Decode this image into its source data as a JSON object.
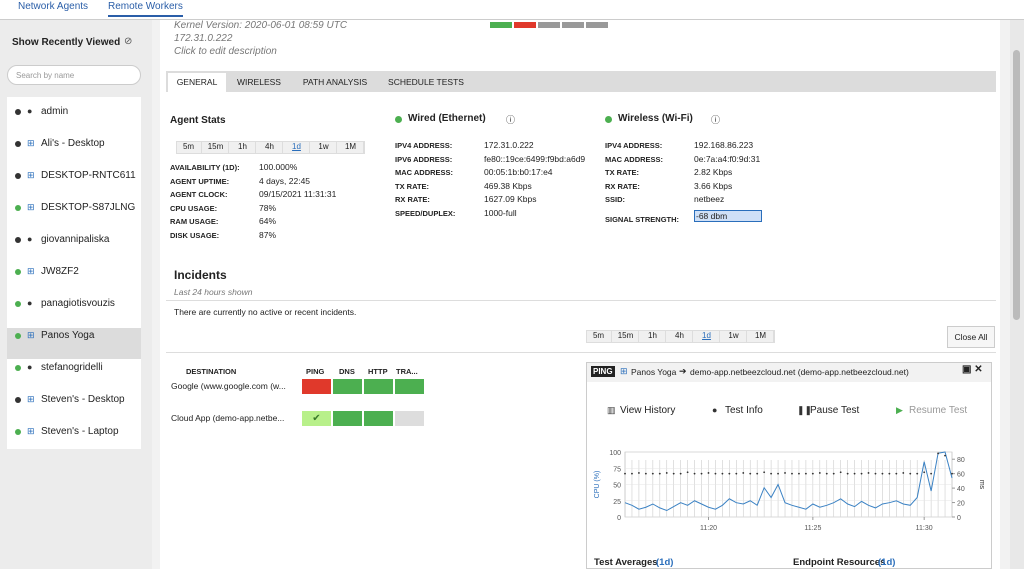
{
  "top_tabs": [
    "Network Agents",
    "Remote Workers"
  ],
  "sidebar": {
    "title": "Show Recently Viewed",
    "search_placeholder": "Search by name",
    "agents": [
      {
        "name": "admin",
        "os": "apple",
        "color": "#333333"
      },
      {
        "name": "Ali's - Desktop",
        "os": "windows",
        "color": "#333333"
      },
      {
        "name": "DESKTOP-RNTC611",
        "os": "windows",
        "color": "#333333"
      },
      {
        "name": "DESKTOP-S87JLNG",
        "os": "windows",
        "color": "#4caf50"
      },
      {
        "name": "giovannipaliska",
        "os": "apple",
        "color": "#333333"
      },
      {
        "name": "JW8ZF2",
        "os": "windows",
        "color": "#4caf50"
      },
      {
        "name": "panagiotisvouzis",
        "os": "apple",
        "color": "#4caf50"
      },
      {
        "name": "Panos Yoga",
        "os": "windows",
        "color": "#4caf50"
      },
      {
        "name": "stefanogridelli",
        "os": "apple",
        "color": "#4caf50"
      },
      {
        "name": "Steven's - Desktop",
        "os": "windows",
        "color": "#333333"
      },
      {
        "name": "Steven's - Laptop",
        "os": "windows",
        "color": "#4caf50"
      }
    ],
    "selected": 7
  },
  "header": {
    "kernel": "Kernel Version: 2020-06-01 08:59 UTC",
    "ip": "172.31.0.222",
    "description": "Click to edit description"
  },
  "tabs": [
    "GENERAL",
    "WIRELESS",
    "PATH ANALYSIS",
    "SCHEDULE TESTS"
  ],
  "ranges": [
    "5m",
    "15m",
    "1h",
    "4h",
    "1d",
    "1w",
    "1M"
  ],
  "selected_range": 4,
  "agent_stats": {
    "title": "Agent Stats",
    "rows": [
      [
        "AVAILABILITY (1D):",
        "100.000%"
      ],
      [
        "AGENT UPTIME:",
        "4 days, 22:45"
      ],
      [
        "AGENT CLOCK:",
        "09/15/2021 11:31:31"
      ],
      [
        "CPU USAGE:",
        "78%"
      ],
      [
        "RAM USAGE:",
        "64%"
      ],
      [
        "DISK USAGE:",
        "87%"
      ]
    ]
  },
  "wired": {
    "title": "Wired (Ethernet)",
    "rows": [
      [
        "IPV4 ADDRESS:",
        "172.31.0.222"
      ],
      [
        "IPV6 ADDRESS:",
        "fe80::19ce:6499:f9bd:a6d9"
      ],
      [
        "MAC ADDRESS:",
        "00:05:1b:b0:17:e4"
      ],
      [
        "TX RATE:",
        "469.38 Kbps"
      ],
      [
        "RX RATE:",
        "1627.09 Kbps"
      ],
      [
        "SPEED/DUPLEX:",
        "1000-full"
      ]
    ]
  },
  "wireless": {
    "title": "Wireless (Wi-Fi)",
    "rows": [
      [
        "IPV4 ADDRESS:",
        "192.168.86.223"
      ],
      [
        "MAC ADDRESS:",
        "0e:7a:a4:f0:9d:31"
      ],
      [
        "TX RATE:",
        "2.82 Kbps"
      ],
      [
        "RX RATE:",
        "3.66 Kbps"
      ],
      [
        "SSID:",
        "netbeez"
      ],
      [
        "SIGNAL STRENGTH:",
        "-68 dbm"
      ]
    ]
  },
  "incidents": {
    "title": "Incidents",
    "subtitle": "Last 24 hours shown",
    "message": "There are currently no active or recent incidents."
  },
  "close_all": "Close All",
  "tests": {
    "headers": [
      "DESTINATION",
      "PING",
      "DNS",
      "HTTP",
      "TRA..."
    ],
    "rows": [
      {
        "destination": "Google (www.google.com (w...",
        "cells": [
          "#e0392b",
          "#4caf50",
          "#4caf50",
          "#4caf50"
        ]
      },
      {
        "destination": "Cloud App (demo-app.netbe...",
        "cells": [
          "#b8f08a",
          "#4caf50",
          "#4caf50",
          "#dddddd"
        ]
      }
    ]
  },
  "panel": {
    "badge": "PING",
    "agent": "Panos Yoga",
    "target": "demo-app.netbeezcloud.net (demo-app.netbeezcloud.net)",
    "actions": [
      "View History",
      "Test Info",
      "Pause Test",
      "Resume Test"
    ],
    "chart": {
      "type": "line",
      "ylabel": "CPU (%)",
      "y2label": "ms",
      "xlim": [
        0,
        47
      ],
      "xticks": [
        {
          "value": 12,
          "label": "11:20"
        },
        {
          "value": 27,
          "label": "11:25"
        },
        {
          "value": 43,
          "label": "11:30"
        }
      ],
      "ylim": [
        0,
        100
      ],
      "yticks": [
        0,
        25,
        50,
        75,
        100
      ],
      "y2lim": [
        0,
        90
      ],
      "y2ticks": [
        0,
        20,
        40,
        60,
        80
      ],
      "series": [
        {
          "name": "CPU",
          "color": "#3b82c4",
          "values": [
            22,
            18,
            12,
            15,
            20,
            14,
            10,
            16,
            22,
            18,
            25,
            20,
            15,
            12,
            18,
            28,
            22,
            20,
            25,
            18,
            45,
            30,
            50,
            22,
            18,
            15,
            12,
            20,
            15,
            18,
            22,
            28,
            20,
            16,
            24,
            18,
            14,
            20,
            22,
            25,
            20,
            18,
            30,
            85,
            40,
            98,
            100,
            60
          ]
        },
        {
          "name": "ms",
          "color": "#333333",
          "axis": "y2",
          "values": [
            60,
            60,
            61,
            60,
            60,
            60,
            61,
            60,
            60,
            62,
            60,
            60,
            61,
            60,
            60,
            60,
            60,
            61,
            60,
            60,
            62,
            60,
            60,
            61,
            60,
            60,
            60,
            60,
            61,
            60,
            60,
            62,
            60,
            60,
            60,
            61,
            60,
            60,
            60,
            60,
            61,
            60,
            60,
            62,
            60,
            88,
            85,
            60
          ]
        }
      ]
    },
    "footer": [
      "Test Averages",
      "Endpoint Resources"
    ],
    "footer_range": "1d"
  }
}
